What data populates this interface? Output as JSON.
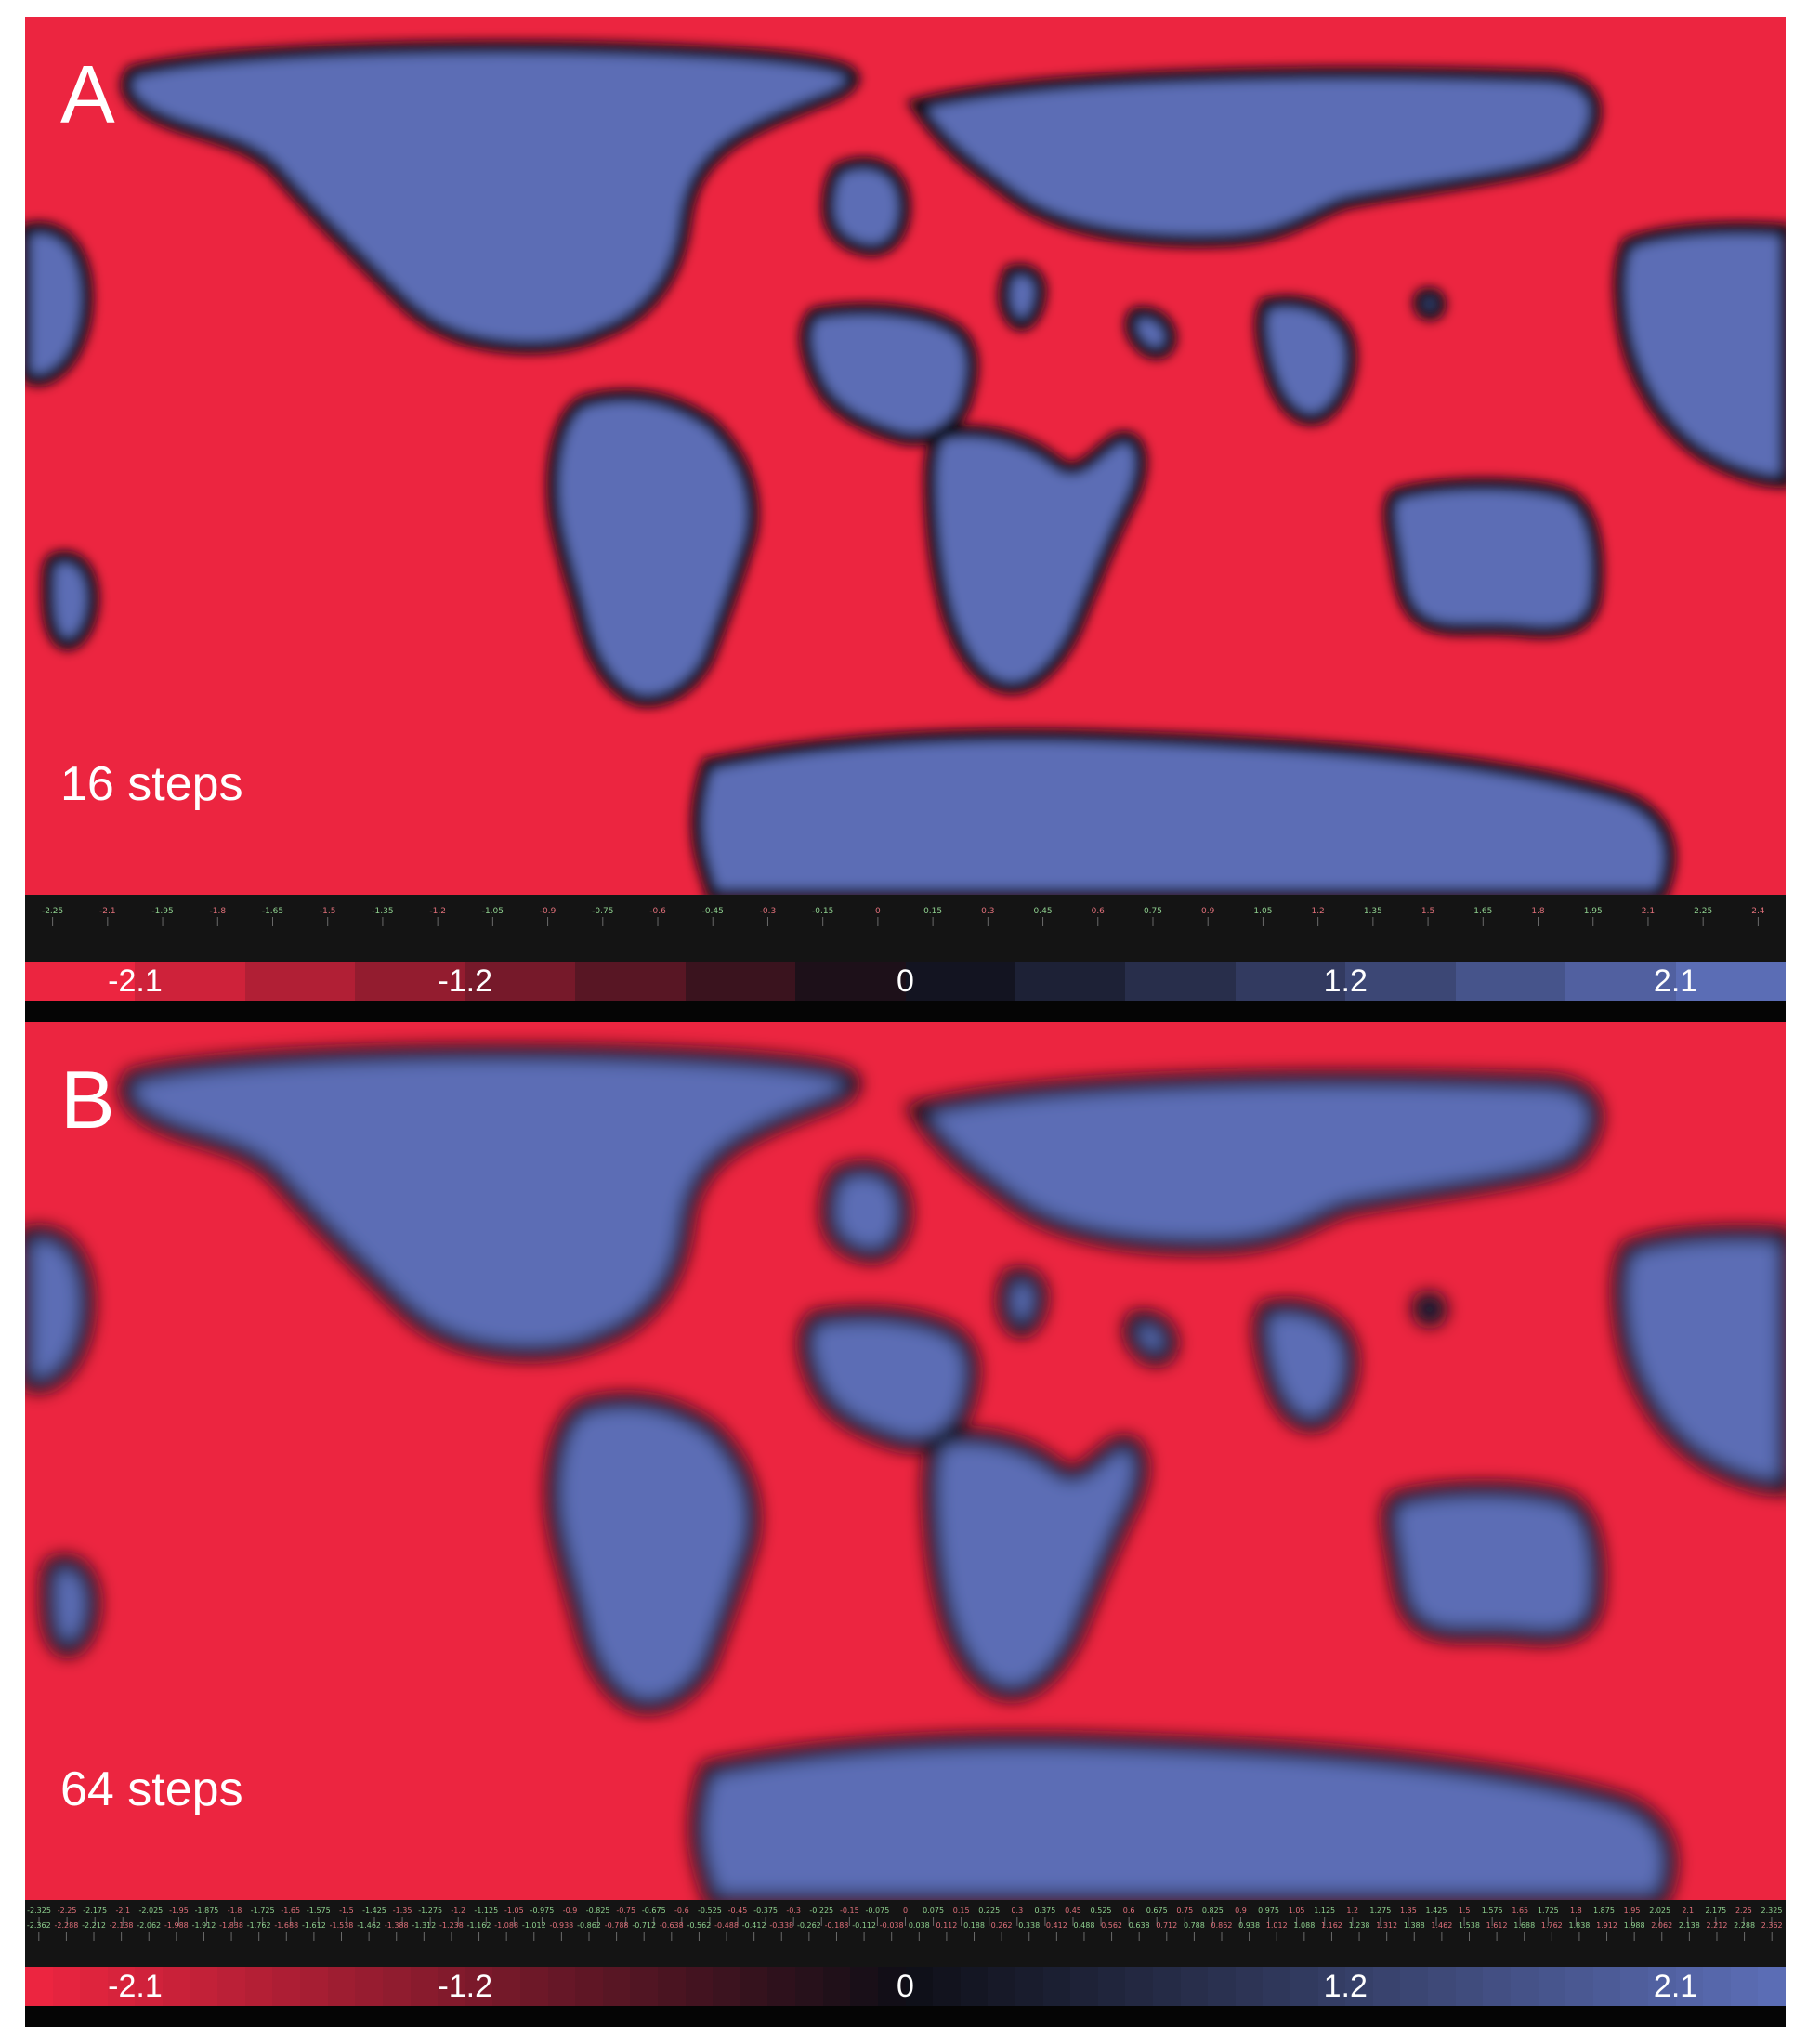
{
  "colors": {
    "red": "#ec2540",
    "blue": "#5b6db5",
    "black": "#0b0b14",
    "tick_pos": "#8fd08f",
    "tick_neg": "#e0707a"
  },
  "panels": [
    {
      "label": "A",
      "steps_text": "16 steps",
      "colorbar_labels": [
        {
          "text": "-2.1",
          "value": -2.1
        },
        {
          "text": "-1.2",
          "value": -1.2
        },
        {
          "text": "0",
          "value": 0
        },
        {
          "text": "1.2",
          "value": 1.2
        },
        {
          "text": "2.1",
          "value": 2.1
        }
      ],
      "colorbar_steps": 16,
      "tick_labels": [
        "-2.25",
        "-2.1",
        "-1.95",
        "-1.8",
        "-1.65",
        "-1.5",
        "-1.35",
        "-1.2",
        "-1.05",
        "-0.9",
        "-0.75",
        "-0.6",
        "-0.45",
        "-0.3",
        "-0.15",
        "0",
        "0.15",
        "0.3",
        "0.45",
        "0.6",
        "0.75",
        "0.9",
        "1.05",
        "1.2",
        "1.35",
        "1.5",
        "1.65",
        "1.8",
        "1.95",
        "2.1",
        "2.25",
        "2.4"
      ]
    },
    {
      "label": "B",
      "steps_text": "64 steps",
      "colorbar_labels": [
        {
          "text": "-2.1",
          "value": -2.1
        },
        {
          "text": "-1.2",
          "value": -1.2
        },
        {
          "text": "0",
          "value": 0
        },
        {
          "text": "1.2",
          "value": 1.2
        },
        {
          "text": "2.1",
          "value": 2.1
        }
      ],
      "colorbar_steps": 64,
      "tick_labels": [
        "-2.325",
        "-2.25",
        "-2.175",
        "-2.1",
        "-2.025",
        "-1.95",
        "-1.875",
        "-1.8",
        "-1.725",
        "-1.65",
        "-1.575",
        "-1.5",
        "-1.425",
        "-1.35",
        "-1.275",
        "-1.2",
        "-1.125",
        "-1.05",
        "-0.975",
        "-0.9",
        "-0.825",
        "-0.75",
        "-0.675",
        "-0.6",
        "-0.525",
        "-0.45",
        "-0.375",
        "-0.3",
        "-0.225",
        "-0.15",
        "-0.075",
        "0",
        "0.075",
        "0.15",
        "0.225",
        "0.3",
        "0.375",
        "0.45",
        "0.525",
        "0.6",
        "0.675",
        "0.75",
        "0.825",
        "0.9",
        "0.975",
        "1.05",
        "1.125",
        "1.2",
        "1.275",
        "1.35",
        "1.425",
        "1.5",
        "1.575",
        "1.65",
        "1.725",
        "1.8",
        "1.875",
        "1.95",
        "2.025",
        "2.1",
        "2.175",
        "2.25",
        "2.325"
      ],
      "tick_labels_row2": [
        "-2.362",
        "-2.288",
        "-2.212",
        "-2.138",
        "-2.062",
        "-1.988",
        "-1.912",
        "-1.838",
        "-1.762",
        "-1.688",
        "-1.612",
        "-1.538",
        "-1.462",
        "-1.388",
        "-1.312",
        "-1.238",
        "-1.162",
        "-1.088",
        "-1.012",
        "-0.938",
        "-0.862",
        "-0.788",
        "-0.712",
        "-0.638",
        "-0.562",
        "-0.488",
        "-0.412",
        "-0.338",
        "-0.262",
        "-0.188",
        "-0.112",
        "-0.038",
        "0.038",
        "0.112",
        "0.188",
        "0.262",
        "0.338",
        "0.412",
        "0.488",
        "0.562",
        "0.638",
        "0.712",
        "0.788",
        "0.862",
        "0.938",
        "1.012",
        "1.088",
        "1.162",
        "1.238",
        "1.312",
        "1.388",
        "1.462",
        "1.538",
        "1.612",
        "1.688",
        "1.762",
        "1.838",
        "1.912",
        "1.988",
        "2.062",
        "2.138",
        "2.212",
        "2.288",
        "2.362"
      ]
    }
  ]
}
